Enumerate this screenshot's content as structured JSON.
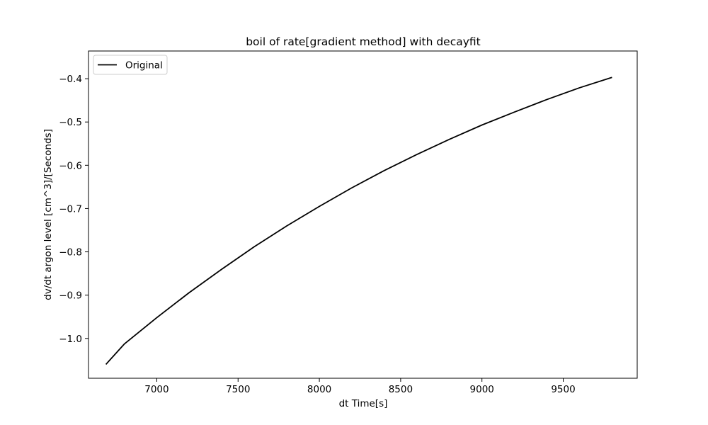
{
  "chart_data": {
    "type": "line",
    "title": "boil of rate[gradient method] with decayfit",
    "xlabel": "dt Time[s]",
    "ylabel": "dv/dt argon level [cm^3]/[Seconds]",
    "xlim": [
      6580,
      9955
    ],
    "ylim": [
      -1.092,
      -0.336
    ],
    "xticks": [
      7000,
      7500,
      8000,
      8500,
      9000,
      9500
    ],
    "xtick_labels": [
      "7000",
      "7500",
      "8000",
      "8500",
      "9000",
      "9500"
    ],
    "yticks": [
      -1.0,
      -0.9,
      -0.8,
      -0.7,
      -0.6,
      -0.5,
      -0.4
    ],
    "ytick_labels": [
      "−1.0",
      "−0.9",
      "−0.8",
      "−0.7",
      "−0.6",
      "−0.5",
      "−0.4"
    ],
    "grid": false,
    "legend": {
      "placement": "upper-left",
      "entries": [
        "Original"
      ]
    },
    "series": [
      {
        "name": "Original",
        "color": "#000000",
        "x": [
          6687,
          6800,
          7000,
          7200,
          7400,
          7600,
          7800,
          8000,
          8200,
          8400,
          8600,
          8800,
          9000,
          9200,
          9400,
          9600,
          9800
        ],
        "y": [
          -1.06,
          -1.013,
          -0.952,
          -0.894,
          -0.84,
          -0.788,
          -0.74,
          -0.695,
          -0.652,
          -0.612,
          -0.575,
          -0.54,
          -0.507,
          -0.477,
          -0.448,
          -0.421,
          -0.397
        ]
      }
    ]
  }
}
